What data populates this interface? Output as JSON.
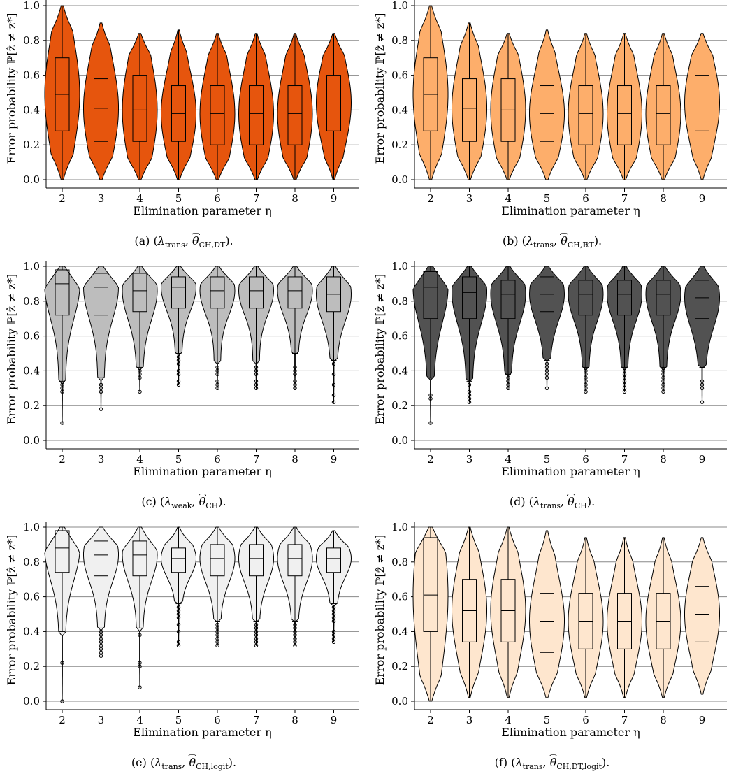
{
  "chart_data": [
    {
      "type": "violin",
      "caption": "(a) (λtrans, θ̂CH,DT).",
      "caption_parts": {
        "label": "(a)",
        "lambda": "λ",
        "lambda_sub": "trans",
        "theta": "θ",
        "theta_sub": "CH,DT"
      },
      "fill": "#e6550d",
      "xlabel": "Elimination parameter η",
      "ylabel": "Error probability ℙ[ẑ ≠ z*]",
      "categories": [
        "2",
        "3",
        "4",
        "5",
        "6",
        "7",
        "8",
        "9"
      ],
      "yticks": [
        "0.0",
        "0.2",
        "0.4",
        "0.6",
        "0.8",
        "1.0"
      ],
      "ylim": [
        0,
        1
      ],
      "grid": true,
      "violins": [
        {
          "min": 0.0,
          "max": 1.0,
          "q1": 0.28,
          "median": 0.49,
          "q3": 0.7
        },
        {
          "min": 0.0,
          "max": 0.9,
          "q1": 0.22,
          "median": 0.41,
          "q3": 0.58
        },
        {
          "min": 0.0,
          "max": 0.84,
          "q1": 0.22,
          "median": 0.4,
          "q3": 0.6
        },
        {
          "min": 0.0,
          "max": 0.86,
          "q1": 0.22,
          "median": 0.38,
          "q3": 0.54
        },
        {
          "min": 0.0,
          "max": 0.84,
          "q1": 0.2,
          "median": 0.38,
          "q3": 0.54
        },
        {
          "min": 0.0,
          "max": 0.84,
          "q1": 0.2,
          "median": 0.38,
          "q3": 0.54
        },
        {
          "min": 0.0,
          "max": 0.84,
          "q1": 0.2,
          "median": 0.38,
          "q3": 0.54
        },
        {
          "min": 0.0,
          "max": 0.84,
          "q1": 0.28,
          "median": 0.44,
          "q3": 0.6
        }
      ]
    },
    {
      "type": "violin",
      "caption": "(b) (λtrans, θ̂CH,ℝT).",
      "caption_parts": {
        "label": "(b)",
        "lambda": "λ",
        "lambda_sub": "trans",
        "theta": "θ",
        "theta_sub": "CH,ℝT"
      },
      "fill": "#fdae6b",
      "xlabel": "Elimination parameter η",
      "ylabel": "Error probability ℙ[ẑ ≠ z*]",
      "categories": [
        "2",
        "3",
        "4",
        "5",
        "6",
        "7",
        "8",
        "9"
      ],
      "yticks": [
        "0.0",
        "0.2",
        "0.4",
        "0.6",
        "0.8",
        "1.0"
      ],
      "ylim": [
        0,
        1
      ],
      "grid": true,
      "violins": [
        {
          "min": 0.0,
          "max": 1.0,
          "q1": 0.28,
          "median": 0.49,
          "q3": 0.7
        },
        {
          "min": 0.0,
          "max": 0.9,
          "q1": 0.22,
          "median": 0.41,
          "q3": 0.58
        },
        {
          "min": 0.0,
          "max": 0.84,
          "q1": 0.22,
          "median": 0.4,
          "q3": 0.58
        },
        {
          "min": 0.0,
          "max": 0.86,
          "q1": 0.22,
          "median": 0.38,
          "q3": 0.54
        },
        {
          "min": 0.0,
          "max": 0.84,
          "q1": 0.2,
          "median": 0.38,
          "q3": 0.54
        },
        {
          "min": 0.0,
          "max": 0.84,
          "q1": 0.2,
          "median": 0.38,
          "q3": 0.54
        },
        {
          "min": 0.0,
          "max": 0.84,
          "q1": 0.2,
          "median": 0.38,
          "q3": 0.54
        },
        {
          "min": 0.0,
          "max": 0.84,
          "q1": 0.28,
          "median": 0.44,
          "q3": 0.6
        }
      ]
    },
    {
      "type": "violin",
      "caption": "(c) (λweak, θ̂CH).",
      "caption_parts": {
        "label": "(c)",
        "lambda": "λ",
        "lambda_sub": "weak",
        "theta": "θ",
        "theta_sub": "CH"
      },
      "fill": "#bdbdbd",
      "xlabel": "Elimination parameter η",
      "ylabel": "Error probability ℙ[ẑ ≠ z*]",
      "categories": [
        "2",
        "3",
        "4",
        "5",
        "6",
        "7",
        "8",
        "9"
      ],
      "yticks": [
        "0.0",
        "0.2",
        "0.4",
        "0.6",
        "0.8",
        "1.0"
      ],
      "ylim": [
        0,
        1
      ],
      "grid": true,
      "violins": [
        {
          "min": 0.1,
          "max": 1.0,
          "q1": 0.72,
          "median": 0.9,
          "q3": 0.98,
          "wlo": 0.34,
          "outliers": [
            0.32,
            0.3,
            0.28,
            0.1
          ]
        },
        {
          "min": 0.18,
          "max": 1.0,
          "q1": 0.72,
          "median": 0.88,
          "q3": 0.96,
          "wlo": 0.36,
          "outliers": [
            0.32,
            0.3,
            0.28,
            0.18
          ]
        },
        {
          "min": 0.28,
          "max": 1.0,
          "q1": 0.74,
          "median": 0.86,
          "q3": 0.96,
          "wlo": 0.42,
          "outliers": [
            0.4,
            0.38,
            0.36,
            0.28
          ]
        },
        {
          "min": 0.32,
          "max": 1.0,
          "q1": 0.76,
          "median": 0.88,
          "q3": 0.94,
          "wlo": 0.5,
          "outliers": [
            0.48,
            0.46,
            0.44,
            0.4,
            0.38,
            0.34,
            0.32
          ]
        },
        {
          "min": 0.3,
          "max": 1.0,
          "q1": 0.76,
          "median": 0.86,
          "q3": 0.94,
          "wlo": 0.44,
          "outliers": [
            0.42,
            0.4,
            0.38,
            0.34,
            0.32,
            0.3
          ]
        },
        {
          "min": 0.3,
          "max": 1.0,
          "q1": 0.76,
          "median": 0.86,
          "q3": 0.94,
          "wlo": 0.44,
          "outliers": [
            0.42,
            0.4,
            0.38,
            0.34,
            0.32,
            0.3
          ]
        },
        {
          "min": 0.3,
          "max": 1.0,
          "q1": 0.76,
          "median": 0.86,
          "q3": 0.94,
          "wlo": 0.5,
          "outliers": [
            0.42,
            0.4,
            0.38,
            0.34,
            0.32,
            0.3
          ]
        },
        {
          "min": 0.22,
          "max": 1.0,
          "q1": 0.74,
          "median": 0.84,
          "q3": 0.94,
          "wlo": 0.46,
          "outliers": [
            0.44,
            0.38,
            0.32,
            0.26,
            0.22
          ]
        }
      ]
    },
    {
      "type": "violin",
      "caption": "(d) (λtrans, θ̂CH).",
      "caption_parts": {
        "label": "(d)",
        "lambda": "λ",
        "lambda_sub": "trans",
        "theta": "θ",
        "theta_sub": "CH"
      },
      "fill": "#525252",
      "xlabel": "Elimination parameter η",
      "ylabel": "Error probability ℙ[ẑ ≠ z*]",
      "categories": [
        "2",
        "3",
        "4",
        "5",
        "6",
        "7",
        "8",
        "9"
      ],
      "yticks": [
        "0.0",
        "0.2",
        "0.4",
        "0.6",
        "0.8",
        "1.0"
      ],
      "ylim": [
        0,
        1
      ],
      "grid": true,
      "violins": [
        {
          "min": 0.1,
          "max": 1.0,
          "q1": 0.7,
          "median": 0.88,
          "q3": 0.97,
          "wlo": 0.36,
          "outliers": [
            0.26,
            0.24,
            0.1
          ]
        },
        {
          "min": 0.22,
          "max": 1.0,
          "q1": 0.7,
          "median": 0.85,
          "q3": 0.94,
          "wlo": 0.34,
          "outliers": [
            0.32,
            0.28,
            0.26,
            0.24,
            0.22
          ]
        },
        {
          "min": 0.3,
          "max": 1.0,
          "q1": 0.7,
          "median": 0.84,
          "q3": 0.92,
          "wlo": 0.38,
          "outliers": [
            0.36,
            0.34,
            0.32,
            0.3
          ]
        },
        {
          "min": 0.3,
          "max": 1.0,
          "q1": 0.74,
          "median": 0.84,
          "q3": 0.94,
          "wlo": 0.46,
          "outliers": [
            0.44,
            0.42,
            0.4,
            0.38,
            0.36,
            0.3
          ]
        },
        {
          "min": 0.28,
          "max": 1.0,
          "q1": 0.72,
          "median": 0.84,
          "q3": 0.92,
          "wlo": 0.42,
          "outliers": [
            0.4,
            0.38,
            0.36,
            0.34,
            0.32,
            0.3,
            0.28
          ]
        },
        {
          "min": 0.28,
          "max": 1.0,
          "q1": 0.72,
          "median": 0.84,
          "q3": 0.92,
          "wlo": 0.42,
          "outliers": [
            0.4,
            0.38,
            0.36,
            0.34,
            0.32,
            0.3,
            0.28
          ]
        },
        {
          "min": 0.28,
          "max": 1.0,
          "q1": 0.72,
          "median": 0.84,
          "q3": 0.92,
          "wlo": 0.42,
          "outliers": [
            0.4,
            0.38,
            0.36,
            0.34,
            0.32,
            0.3,
            0.28
          ]
        },
        {
          "min": 0.22,
          "max": 1.0,
          "q1": 0.7,
          "median": 0.82,
          "q3": 0.92,
          "wlo": 0.42,
          "outliers": [
            0.34,
            0.32,
            0.3,
            0.22
          ]
        }
      ]
    },
    {
      "type": "violin",
      "caption": "(e) (λtrans, θ̂CH,logit).",
      "caption_parts": {
        "label": "(e)",
        "lambda": "λ",
        "lambda_sub": "trans",
        "theta": "θ",
        "theta_sub": "CH,logit"
      },
      "fill": "#f0f0f0",
      "xlabel": "Elimination parameter η",
      "ylabel": "Error probability ℙ[ẑ ≠ z*]",
      "categories": [
        "2",
        "3",
        "4",
        "5",
        "6",
        "7",
        "8",
        "9"
      ],
      "yticks": [
        "0.0",
        "0.2",
        "0.4",
        "0.6",
        "0.8",
        "1.0"
      ],
      "ylim": [
        0,
        1
      ],
      "grid": true,
      "violins": [
        {
          "min": 0.0,
          "max": 1.0,
          "q1": 0.74,
          "median": 0.88,
          "q3": 0.98,
          "wlo": 0.4,
          "outliers": [
            0.22,
            0.0
          ]
        },
        {
          "min": 0.26,
          "max": 1.0,
          "q1": 0.72,
          "median": 0.84,
          "q3": 0.92,
          "wlo": 0.42,
          "outliers": [
            0.4,
            0.38,
            0.36,
            0.34,
            0.32,
            0.3,
            0.28,
            0.26
          ]
        },
        {
          "min": 0.08,
          "max": 1.0,
          "q1": 0.72,
          "median": 0.84,
          "q3": 0.92,
          "wlo": 0.42,
          "outliers": [
            0.38,
            0.22,
            0.2,
            0.08
          ]
        },
        {
          "min": 0.32,
          "max": 1.0,
          "q1": 0.74,
          "median": 0.82,
          "q3": 0.88,
          "wlo": 0.56,
          "outliers": [
            0.54,
            0.52,
            0.5,
            0.48,
            0.44,
            0.4,
            0.34,
            0.32
          ]
        },
        {
          "min": 0.32,
          "max": 1.0,
          "q1": 0.72,
          "median": 0.82,
          "q3": 0.9,
          "wlo": 0.46,
          "outliers": [
            0.44,
            0.42,
            0.4,
            0.38,
            0.36,
            0.34,
            0.32
          ]
        },
        {
          "min": 0.32,
          "max": 1.0,
          "q1": 0.72,
          "median": 0.82,
          "q3": 0.9,
          "wlo": 0.46,
          "outliers": [
            0.44,
            0.42,
            0.4,
            0.38,
            0.36,
            0.34,
            0.32
          ]
        },
        {
          "min": 0.32,
          "max": 1.0,
          "q1": 0.72,
          "median": 0.82,
          "q3": 0.9,
          "wlo": 0.46,
          "outliers": [
            0.44,
            0.42,
            0.4,
            0.38,
            0.36,
            0.34,
            0.32
          ]
        },
        {
          "min": 0.34,
          "max": 0.98,
          "q1": 0.74,
          "median": 0.82,
          "q3": 0.88,
          "wlo": 0.56,
          "outliers": [
            0.54,
            0.52,
            0.5,
            0.48,
            0.46,
            0.4,
            0.38,
            0.36,
            0.34
          ]
        }
      ]
    },
    {
      "type": "violin",
      "caption": "(f) (λtrans, θ̂CH,DT,logit).",
      "caption_parts": {
        "label": "(f)",
        "lambda": "λ",
        "lambda_sub": "trans",
        "theta": "θ",
        "theta_sub": "CH,DT,logit"
      },
      "fill": "#fee6ce",
      "xlabel": "Elimination parameter η",
      "ylabel": "Error probability ℙ[ẑ ≠ z*]",
      "categories": [
        "2",
        "3",
        "4",
        "5",
        "6",
        "7",
        "8",
        "9"
      ],
      "yticks": [
        "0.0",
        "0.2",
        "0.4",
        "0.6",
        "0.8",
        "1.0"
      ],
      "ylim": [
        0,
        1
      ],
      "grid": true,
      "violins": [
        {
          "min": 0.0,
          "max": 1.0,
          "q1": 0.4,
          "median": 0.61,
          "q3": 0.94
        },
        {
          "min": 0.02,
          "max": 1.0,
          "q1": 0.34,
          "median": 0.52,
          "q3": 0.7
        },
        {
          "min": 0.02,
          "max": 1.0,
          "q1": 0.34,
          "median": 0.52,
          "q3": 0.7
        },
        {
          "min": 0.02,
          "max": 0.98,
          "q1": 0.28,
          "median": 0.46,
          "q3": 0.62
        },
        {
          "min": 0.02,
          "max": 0.94,
          "q1": 0.3,
          "median": 0.46,
          "q3": 0.62
        },
        {
          "min": 0.02,
          "max": 0.94,
          "q1": 0.3,
          "median": 0.46,
          "q3": 0.62
        },
        {
          "min": 0.02,
          "max": 0.94,
          "q1": 0.3,
          "median": 0.46,
          "q3": 0.62
        },
        {
          "min": 0.04,
          "max": 0.94,
          "q1": 0.34,
          "median": 0.5,
          "q3": 0.66
        }
      ]
    }
  ]
}
